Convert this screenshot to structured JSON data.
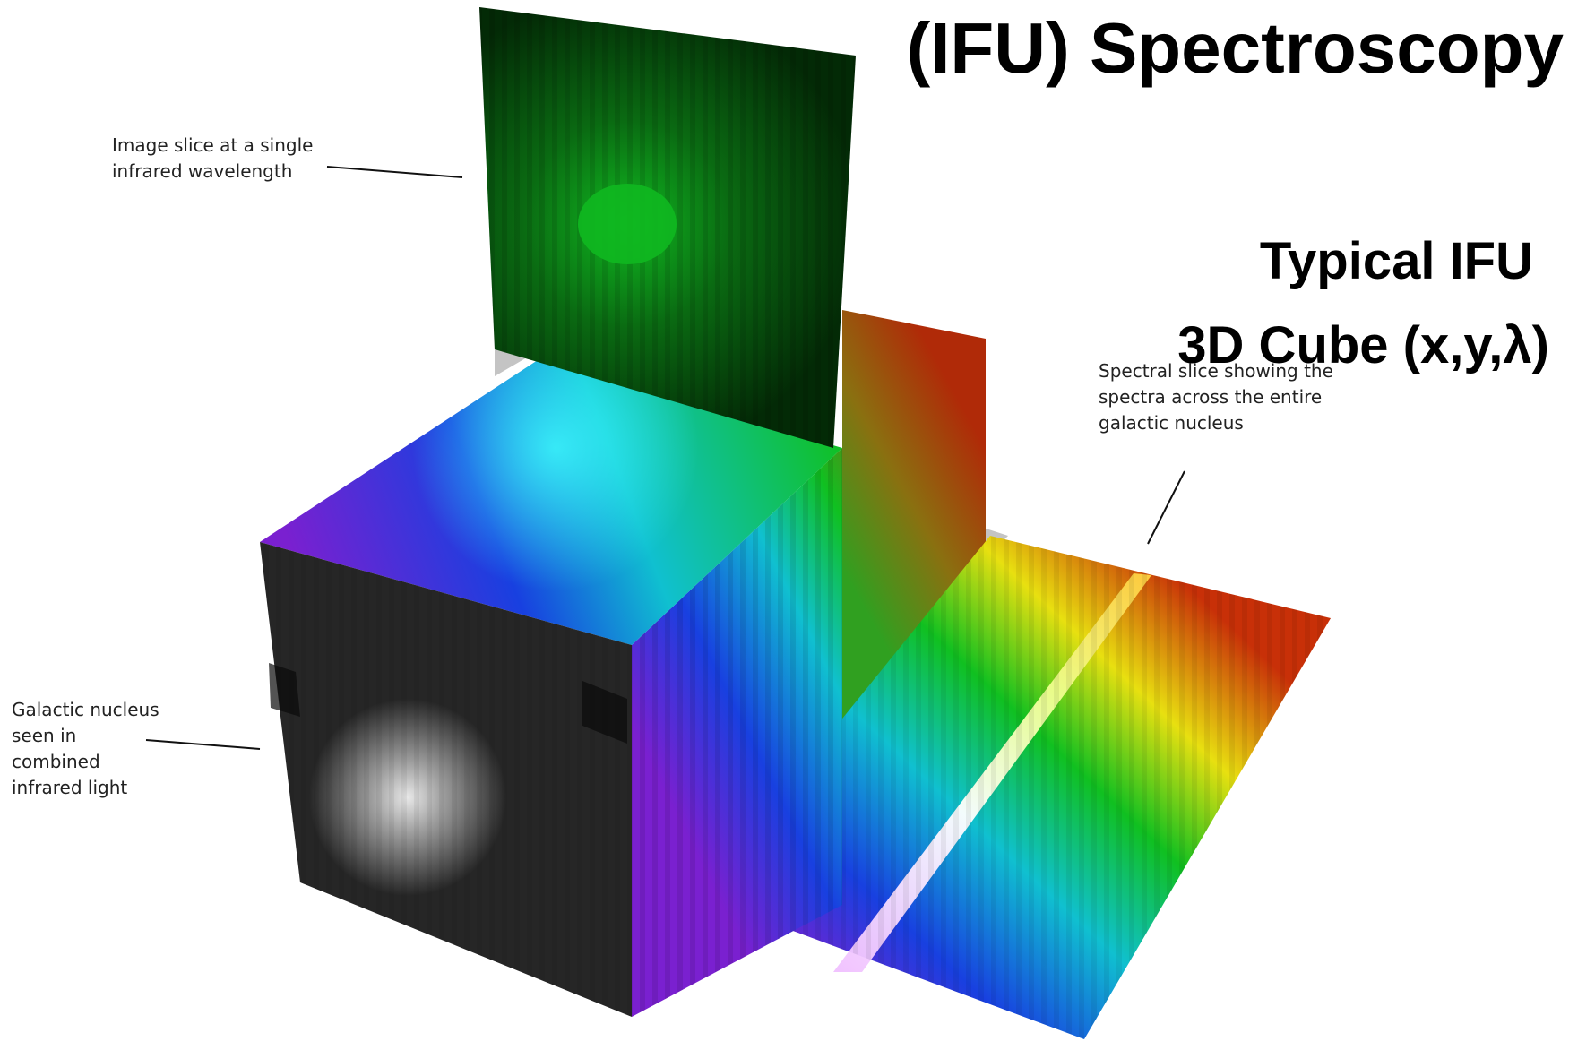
{
  "title": {
    "main": "(IFU) Spectroscopy",
    "sub_line1": "Typical IFU",
    "sub_line2": "3D Cube (x,y,λ)"
  },
  "callouts": {
    "image_slice": [
      "Image slice at a single",
      "infrared wavelength"
    ],
    "spectral_slice": [
      "Spectral slice showing the",
      "spectra across the entire",
      "galactic nucleus"
    ],
    "nucleus": [
      "Galactic nucleus",
      "seen in",
      "combined",
      "infrared light"
    ]
  },
  "colors": {
    "image_slice": "#10b820",
    "spectrum_violet": "#7a20d0",
    "spectrum_blue": "#1840e0",
    "spectrum_cyan": "#10c0d0",
    "spectrum_green": "#10c020",
    "spectrum_yellow": "#e8e010",
    "spectrum_red": "#c83008",
    "nucleus_gray": "#e8e8e8"
  }
}
